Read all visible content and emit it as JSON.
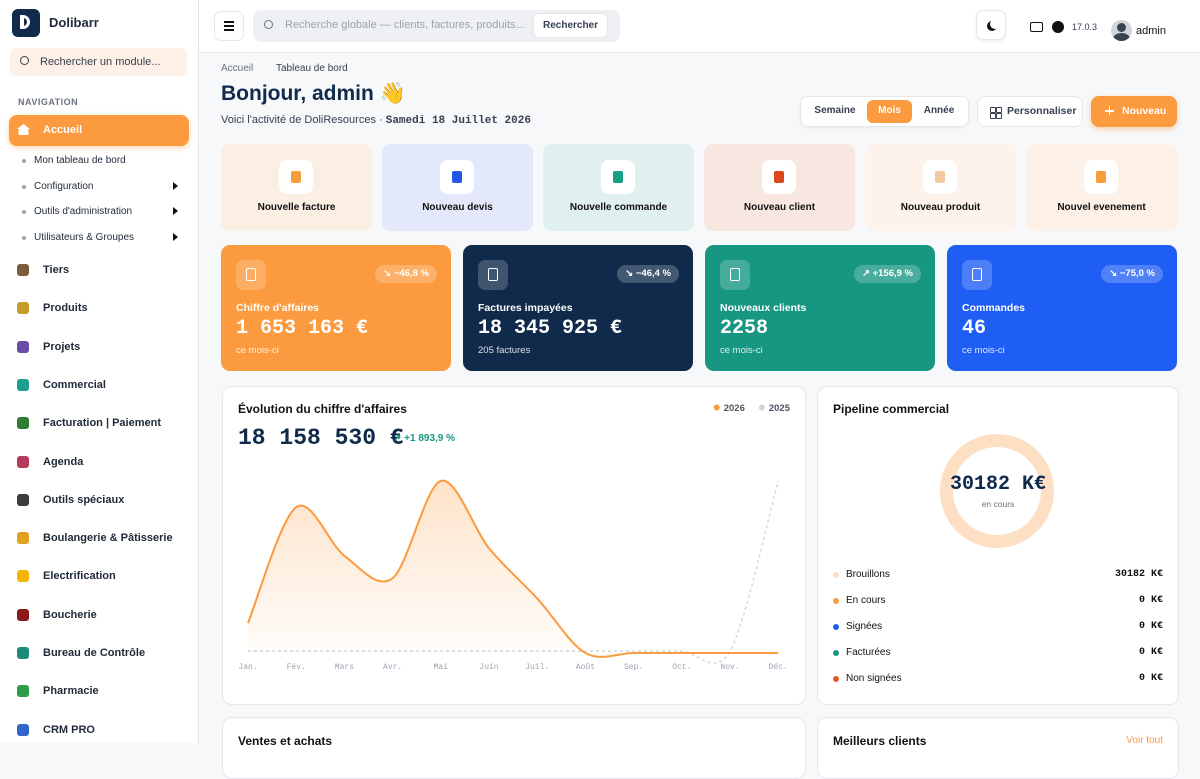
{
  "sidebar": {
    "brand": "Dolibarr",
    "search_placeholder": "Rechercher un module...",
    "section": "NAVIGATION",
    "active": "Accueil",
    "submenu": [
      "Mon tableau de bord",
      "Configuration",
      "Outils d'administration",
      "Utilisateurs & Groupes"
    ],
    "items": [
      "Tiers",
      "Produits",
      "Projets",
      "Commercial",
      "Facturation | Paiement",
      "Agenda",
      "Outils spéciaux",
      "Boulangerie & Pâtisserie",
      "Electrification",
      "Boucherie",
      "Bureau de Contrôle",
      "Pharmacie",
      "CRM PRO"
    ]
  },
  "topbar": {
    "search_placeholder": "Recherche globale — clients, factures, produits...",
    "search_button": "Rechercher",
    "version": "17.0.3",
    "user": "admin"
  },
  "header": {
    "breadcrumb": [
      "Accueil",
      "Tableau de bord"
    ],
    "greeting": "Bonjour, admin 👋",
    "subtitle": "Voici l'activité de DoliResources · ",
    "date": "Samedi 18 Juillet 2026",
    "periods": [
      "Semaine",
      "Mois",
      "Année"
    ],
    "customize": "Personnaliser",
    "new": "Nouveau"
  },
  "quick_actions": [
    "Nouvelle facture",
    "Nouveau devis",
    "Nouvelle commande",
    "Nouveau client",
    "Nouveau produit",
    "Nouvel evenement"
  ],
  "kpis": [
    {
      "label": "Chiffre d'affaires",
      "value": "1 653 163 €",
      "note": "ce mois-ci",
      "change": "↘ −46,8 %"
    },
    {
      "label": "Factures impayées",
      "value": "18 345 925 €",
      "note": "205 factures",
      "change": "↘ −46,4 %"
    },
    {
      "label": "Nouveaux clients",
      "value": "2258",
      "note": "ce mois-ci",
      "change": "↗ +156,9 %"
    },
    {
      "label": "Commandes",
      "value": "46",
      "note": "ce mois-ci",
      "change": "↘ −75,0 %"
    }
  ],
  "chart_data": {
    "type": "line",
    "title": "Évolution du chiffre d'affaires",
    "subtitle": "18 158 530 €",
    "annotation": "↗ +1 893,9 %",
    "categories": [
      "Jan.",
      "Fév.",
      "Mars",
      "Avr.",
      "Mai",
      "Juin",
      "Juil.",
      "Août",
      "Sep.",
      "Oct.",
      "Nov.",
      "Déc."
    ],
    "series": [
      {
        "name": "2026",
        "color": "#fb9a3e",
        "values": [
          800000,
          3900000,
          2600000,
          2000000,
          4600000,
          2800000,
          1460000,
          0,
          0,
          0,
          0,
          0
        ]
      },
      {
        "name": "2025",
        "color": "#d1d5db",
        "values": [
          50000,
          50000,
          50000,
          50000,
          50000,
          50000,
          50000,
          50000,
          50000,
          50000,
          50000,
          4600000
        ]
      }
    ],
    "ylim": [
      0,
      5000000
    ],
    "legend": "top-right",
    "grid": false
  },
  "pipeline": {
    "title": "Pipeline commercial",
    "center_value": "30182 K€",
    "center_label": "en cours",
    "rows": [
      {
        "label": "Brouillons",
        "value": "30182 K€"
      },
      {
        "label": "En cours",
        "value": "0 K€"
      },
      {
        "label": "Signées",
        "value": "0 K€"
      },
      {
        "label": "Facturées",
        "value": "0 K€"
      },
      {
        "label": "Non signées",
        "value": "0 K€"
      }
    ]
  },
  "bottom": {
    "sales_title": "Ventes et achats",
    "clients_title": "Meilleurs clients",
    "see_all": "Voir tout"
  }
}
